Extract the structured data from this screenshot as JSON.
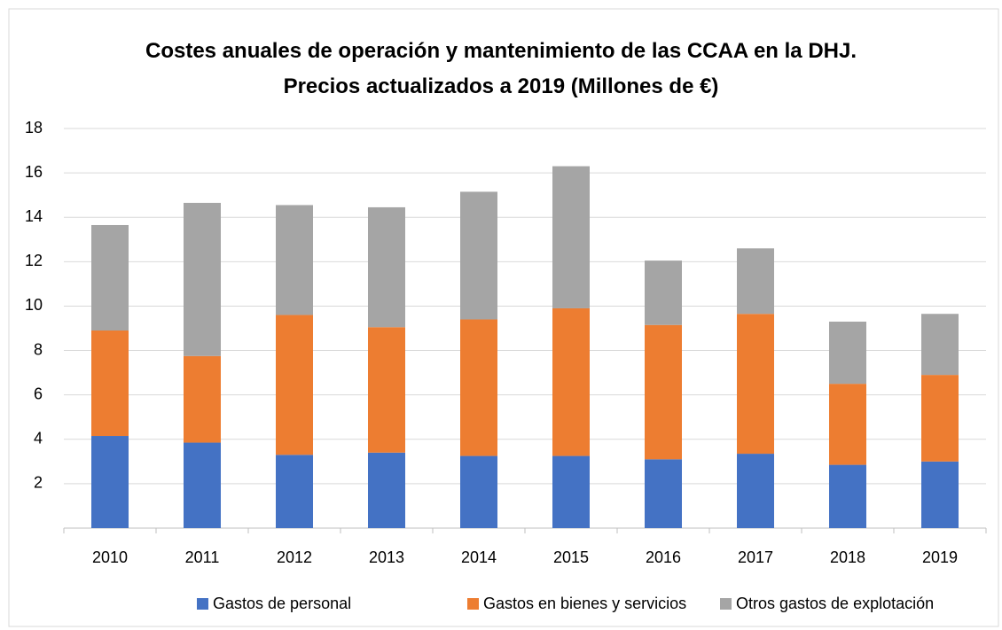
{
  "chart_data": {
    "type": "stacked_bar",
    "title": "Costes anuales de operación y mantenimiento de las CCAA en la DHJ. Precios actualizados a 2019 (Millones de €)",
    "categories": [
      "2010",
      "2011",
      "2012",
      "2013",
      "2014",
      "2015",
      "2016",
      "2017",
      "2018",
      "2019"
    ],
    "series": [
      {
        "name": "Gastos de personal",
        "color": "#4472c4",
        "values": [
          4.15,
          3.85,
          3.3,
          3.4,
          3.25,
          3.25,
          3.1,
          3.35,
          2.85,
          3.0
        ]
      },
      {
        "name": "Gastos en bienes y servicios",
        "color": "#ed7d31",
        "values": [
          4.75,
          3.9,
          6.3,
          5.65,
          6.15,
          6.65,
          6.05,
          6.3,
          3.65,
          3.9
        ]
      },
      {
        "name": "Otros gastos de explotación",
        "color": "#a5a5a5",
        "values": [
          4.75,
          6.9,
          4.95,
          5.4,
          5.75,
          6.4,
          2.9,
          2.95,
          2.8,
          2.75
        ]
      }
    ],
    "ylim": [
      0,
      18
    ],
    "yticks": [
      2,
      4,
      6,
      8,
      10,
      12,
      14,
      16,
      18
    ],
    "grid": true,
    "legend": "bottom"
  }
}
